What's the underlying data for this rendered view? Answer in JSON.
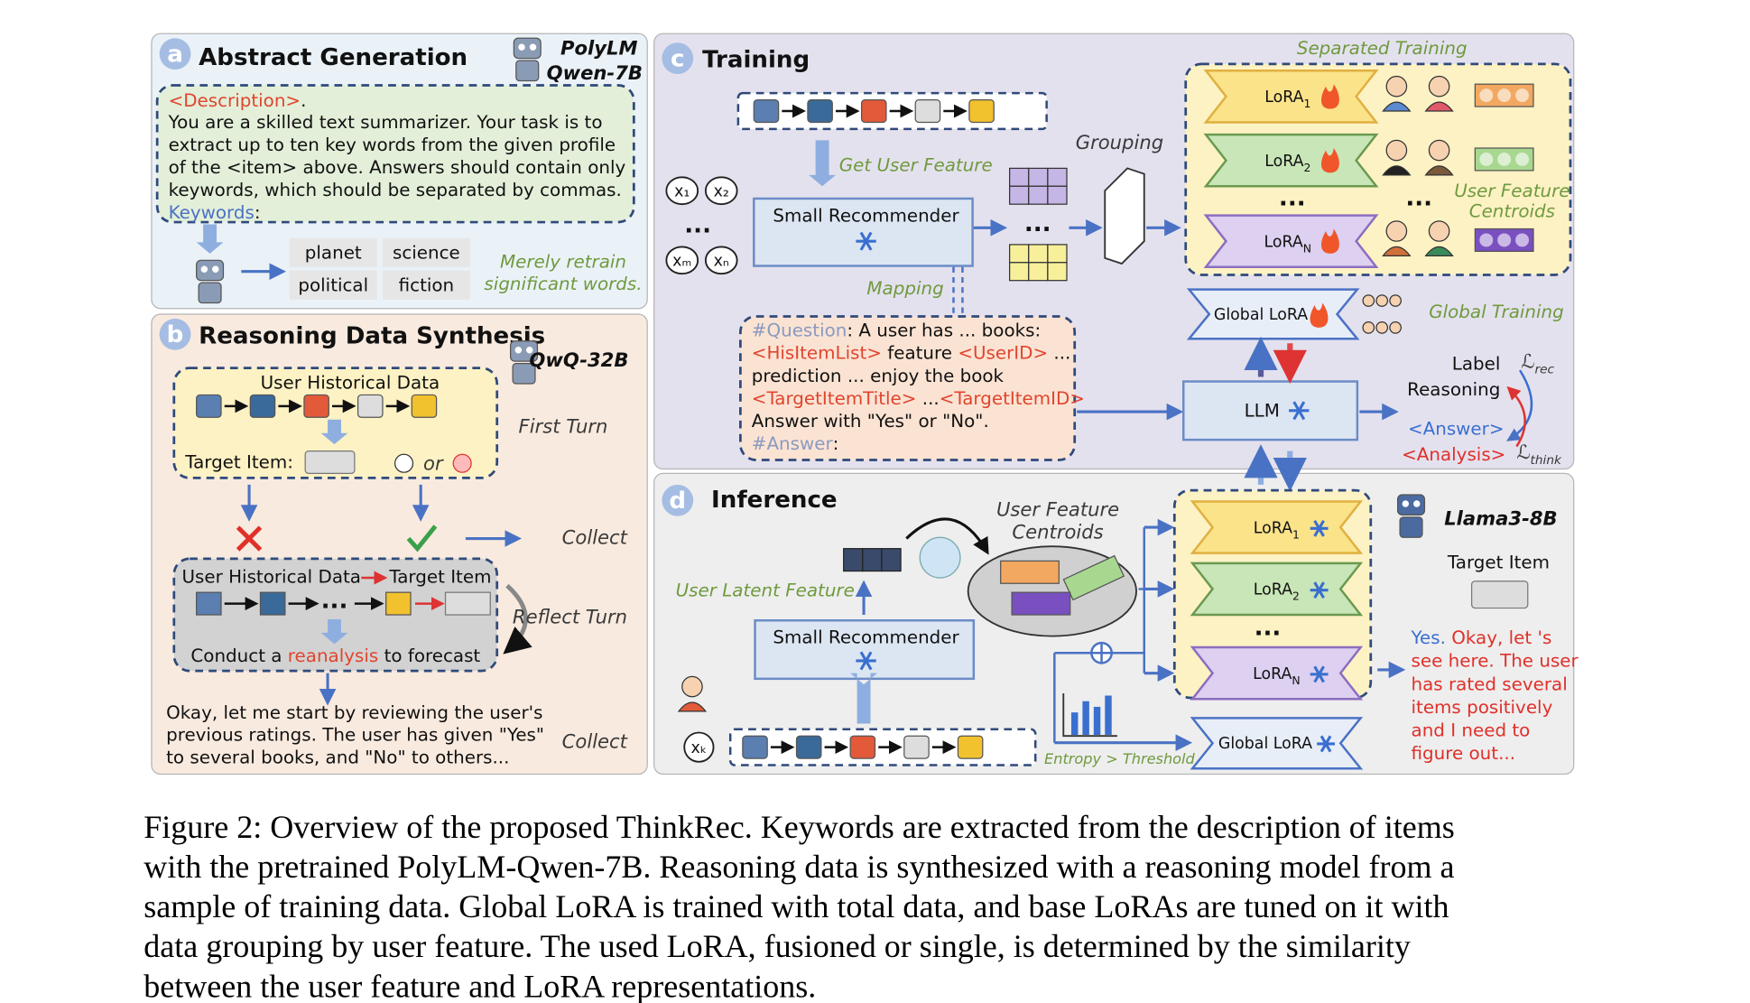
{
  "panel_a": {
    "letter": "a",
    "title": "Abstract Generation",
    "model": [
      "PolyLM",
      "Qwen-7B"
    ],
    "prompt": {
      "first": [
        "<Description>",
        "."
      ],
      "lines": [
        "You are a skilled text summarizer. Your task is to",
        "extract up to ten key words from the given profile",
        "of the <item> above. Answers should contain only",
        "keywords, which should be separated by commas."
      ],
      "last": [
        "Keywords",
        ":"
      ]
    },
    "keywords": [
      "planet",
      "science",
      "political",
      "fiction"
    ],
    "note": [
      "Merely retrain",
      "significant words."
    ]
  },
  "panel_b": {
    "letter": "b",
    "title": "Reasoning Data Synthesis",
    "model": "QwQ-32B",
    "history_title": "User Historical Data",
    "target_label": "Target Item:",
    "or": "or",
    "first_turn": "First Turn",
    "collect": [
      "Collect",
      "Collect"
    ],
    "reflect_left": "User Historical Data",
    "reflect_right": "Target Item",
    "dots": "...",
    "forecast": [
      "Conduct a ",
      "reanalysis",
      " to forecast"
    ],
    "reflect_turn": "Reflect Turn",
    "output": [
      "Okay, let me start by reviewing the user's",
      "previous ratings. The user has given \"Yes\"",
      "to several books, and \"No\" to others..."
    ]
  },
  "panel_c": {
    "letter": "c",
    "title": "Training",
    "get_user_feature": "Get User Feature",
    "inputs": [
      "x₁",
      "x₂",
      "xₘ",
      "xₙ"
    ],
    "dots": "...",
    "small_recommender": "Small Recommender",
    "grouping": "Grouping",
    "mapping": "Mapping",
    "separated_training": "Separated Training",
    "lora": "LoRA",
    "lora_subs": [
      "1",
      "2",
      "N"
    ],
    "centroids": [
      "User Feature",
      "Centroids"
    ],
    "global_lora": "Global LoRA",
    "global_training": "Global Training",
    "question": [
      [
        "#Question",
        ": A user has ... books:"
      ],
      [
        "<HisItemList>",
        " feature ",
        "<UserID>",
        " ..."
      ],
      [
        "prediction ... enjoy the book"
      ],
      [
        "<TargetItemTitle>",
        " ...",
        "<TargetItemID>"
      ],
      [
        "Answer with \"Yes\" or \"No\"."
      ],
      [
        "#Answer",
        ":"
      ]
    ],
    "llm": "LLM",
    "label": "Label",
    "reasoning": "Reasoning",
    "answer": "<Answer>",
    "analysis": "<Analysis>",
    "loss": "ℒ",
    "loss_subs": [
      "rec",
      "think"
    ]
  },
  "panel_d": {
    "letter": "d",
    "title": "Inference",
    "user_latent_feature": "User Latent Feature",
    "small_recommender": "Small Recommender",
    "centroids": [
      "User Feature",
      "Centroids"
    ],
    "dots": "...",
    "threshold": "Entropy > Threshold",
    "input": "xₖ",
    "model": "Llama3-8B",
    "target_item": "Target Item",
    "output": [
      [
        "Yes.",
        "  Okay, let  's"
      ],
      [
        "see here. The user"
      ],
      [
        "has rated several"
      ],
      [
        "items positively"
      ],
      [
        "and I need to"
      ],
      [
        "figure out..."
      ]
    ]
  },
  "caption": [
    "Figure 2: Overview of the proposed ThinkRec. Keywords are extracted from the description of items",
    "with the pretrained PolyLM-Qwen-7B. Reasoning data is synthesized with a reasoning model from a",
    "sample of training data. Global LoRA is trained with total data, and base LoRAs are tuned on it with",
    "data grouping by user feature. The used LoRA, fusioned or single, is determined by the similarity",
    "between the user feature and LoRA representations."
  ]
}
